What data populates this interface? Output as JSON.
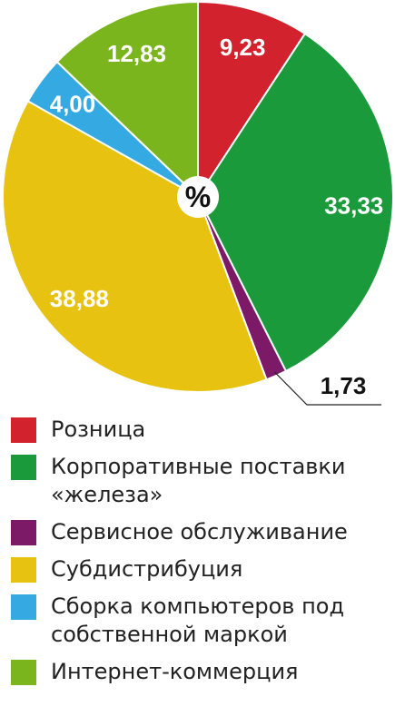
{
  "chart_data": {
    "type": "pie",
    "center_label": "%",
    "categories": [
      "Розница",
      "Корпоративные поставки «железа»",
      "Сервисное обслуживание",
      "Субдистрибуция",
      "Сборка компьютеров под собственной маркой",
      "Интернет-коммерция"
    ],
    "values": [
      9.23,
      33.33,
      1.73,
      38.88,
      4.0,
      12.83
    ],
    "value_labels": [
      "9,23",
      "33,33",
      "1,73",
      "38,88",
      "4,00",
      "12,83"
    ],
    "colors": [
      "#d2222d",
      "#1b9a3b",
      "#7c1a68",
      "#e8c210",
      "#35a9e1",
      "#7ab51d"
    ]
  }
}
